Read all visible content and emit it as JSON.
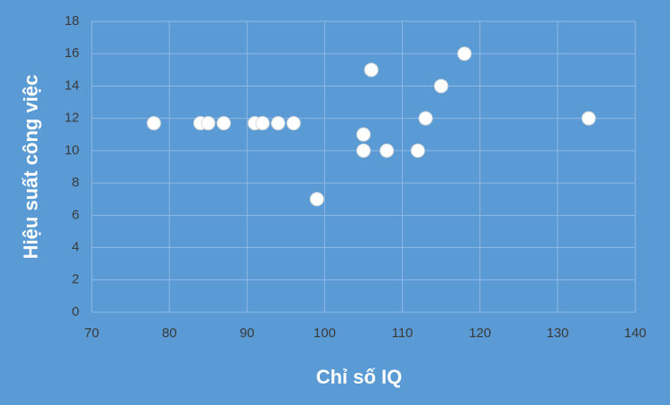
{
  "chart_data": {
    "type": "scatter",
    "xlabel": "Chỉ số IQ",
    "ylabel": "Hiệu suất công việc",
    "x": [
      78,
      84,
      85,
      87,
      91,
      92,
      94,
      96,
      99,
      105,
      105,
      106,
      108,
      112,
      113,
      115,
      118,
      134
    ],
    "values": [
      11.7,
      11.7,
      11.7,
      11.7,
      11.7,
      11.7,
      11.7,
      11.7,
      7,
      11,
      10,
      15,
      10,
      10,
      12,
      14,
      16,
      12
    ],
    "color": "#ffffff",
    "xlim": [
      70,
      140
    ],
    "xticks": [
      70,
      80,
      90,
      100,
      110,
      120,
      130,
      140
    ],
    "ylim": [
      0,
      18
    ],
    "yticks": [
      0,
      2,
      4,
      6,
      8,
      10,
      12,
      14,
      16,
      18
    ],
    "grid": true
  }
}
